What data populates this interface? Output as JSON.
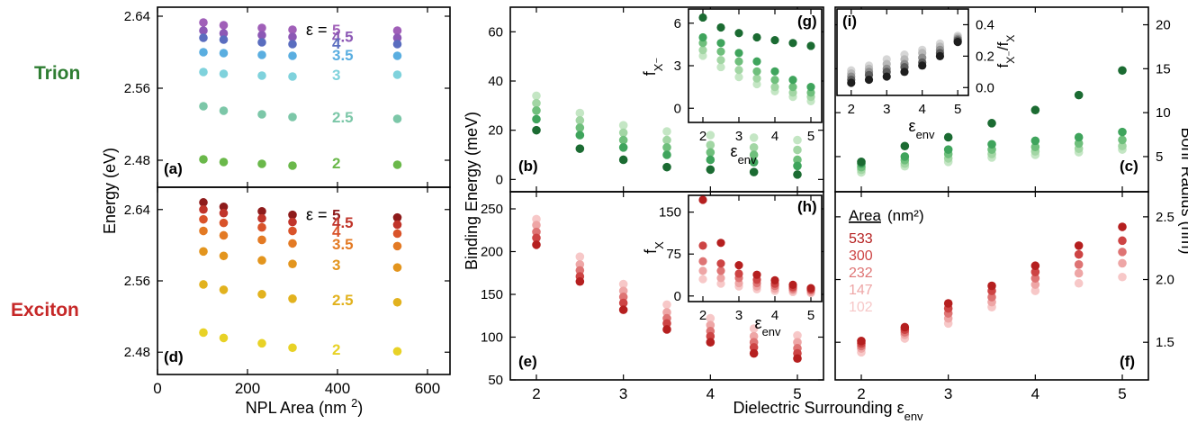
{
  "row_labels": {
    "trion": "Trion",
    "exciton": "Exciton"
  },
  "colors": {
    "trion_label": "#2e7d32",
    "exciton_label": "#c62828",
    "eps_palette": {
      "2": "#6ab84a",
      "2.5": "#7cc7a8",
      "3": "#7fd2dc",
      "3.5": "#5aaee0",
      "4": "#5a6dbf",
      "4.5": "#8c58b5",
      "5": "#a05fb8"
    },
    "exciton_eps_palette": {
      "2": "#e8d226",
      "2.5": "#e2b21e",
      "3": "#e3951e",
      "3.5": "#e37a24",
      "4": "#d9532a",
      "4.5": "#c0342a",
      "5": "#8e1b1b"
    },
    "area_green": {
      "102": "#c4e6c4",
      "147": "#a2d6a4",
      "232": "#6fbf7c",
      "300": "#3fa45c",
      "533": "#1b6b32"
    },
    "area_red": {
      "102": "#f7c8c8",
      "147": "#eea6a6",
      "232": "#de7474",
      "300": "#cd4444",
      "533": "#b51f1f"
    },
    "area_gray": {
      "102": "#d6d6d6",
      "147": "#b8b8b8",
      "232": "#8e8e8e",
      "300": "#5c5c5c",
      "533": "#1e1e1e"
    }
  },
  "chart_data": [
    {
      "id": "a",
      "panel_label": "(a)",
      "type": "scatter",
      "ylabel": "Energy (eV)",
      "xlim": [
        0,
        650
      ],
      "ylim": [
        2.45,
        2.65
      ],
      "yticks": [
        "2.48",
        "2.56",
        "2.64"
      ],
      "x": [
        102,
        147,
        232,
        300,
        533
      ],
      "eps_prefix": "ε =",
      "series": [
        {
          "name": "5",
          "values": [
            2.633,
            2.63,
            2.627,
            2.625,
            2.624
          ]
        },
        {
          "name": "4.5",
          "values": [
            2.624,
            2.621,
            2.619,
            2.617,
            2.616
          ]
        },
        {
          "name": "4",
          "values": [
            2.616,
            2.614,
            2.611,
            2.609,
            2.609
          ]
        },
        {
          "name": "3.5",
          "values": [
            2.6,
            2.599,
            2.597,
            2.596,
            2.596
          ]
        },
        {
          "name": "3",
          "values": [
            2.578,
            2.576,
            2.574,
            2.573,
            2.575
          ]
        },
        {
          "name": "2.5",
          "values": [
            2.54,
            2.535,
            2.531,
            2.528,
            2.526
          ]
        },
        {
          "name": "2",
          "values": [
            2.481,
            2.478,
            2.476,
            2.474,
            2.475
          ]
        }
      ]
    },
    {
      "id": "d",
      "panel_label": "(d)",
      "type": "scatter",
      "xlabel": "NPL Area (nm 2)",
      "xlim": [
        0,
        650
      ],
      "ylim": [
        2.455,
        2.665
      ],
      "xticks": [
        "0",
        "200",
        "400",
        "600"
      ],
      "yticks": [
        "2.48",
        "2.56",
        "2.64"
      ],
      "x": [
        102,
        147,
        232,
        300,
        533
      ],
      "eps_prefix": "ε =",
      "series": [
        {
          "name": "5",
          "values": [
            2.648,
            2.643,
            2.638,
            2.634,
            2.631
          ]
        },
        {
          "name": "4.5",
          "values": [
            2.64,
            2.636,
            2.63,
            2.626,
            2.623
          ]
        },
        {
          "name": "4",
          "values": [
            2.629,
            2.625,
            2.62,
            2.616,
            2.613
          ]
        },
        {
          "name": "3.5",
          "values": [
            2.616,
            2.611,
            2.606,
            2.602,
            2.599
          ]
        },
        {
          "name": "3",
          "values": [
            2.593,
            2.588,
            2.583,
            2.579,
            2.575
          ]
        },
        {
          "name": "2.5",
          "values": [
            2.556,
            2.55,
            2.545,
            2.54,
            2.536
          ]
        },
        {
          "name": "2",
          "values": [
            2.502,
            2.496,
            2.49,
            2.485,
            2.481
          ]
        }
      ]
    },
    {
      "id": "b",
      "panel_label": "(b)",
      "type": "scatter",
      "xlim": [
        1.7,
        5.3
      ],
      "ylim": [
        -5,
        70
      ],
      "yticks": [
        "0",
        "20",
        "40",
        "60"
      ],
      "x": [
        2,
        2.5,
        3,
        3.5,
        4,
        4.5,
        5
      ],
      "series": [
        {
          "name": "102",
          "values": [
            34,
            27,
            22,
            19.5,
            18,
            17,
            16
          ]
        },
        {
          "name": "147",
          "values": [
            31,
            24,
            19,
            16,
            14,
            13,
            12
          ]
        },
        {
          "name": "232",
          "values": [
            28,
            21,
            16,
            13,
            11,
            10,
            8
          ]
        },
        {
          "name": "300",
          "values": [
            24.5,
            18,
            13,
            10,
            8,
            7,
            5.5
          ]
        },
        {
          "name": "533",
          "values": [
            20,
            12.5,
            8,
            5,
            4,
            3,
            2
          ]
        }
      ]
    },
    {
      "id": "e",
      "panel_label": "(e)",
      "type": "scatter",
      "xlabel": "Dielectric Surrounding",
      "xlabel_symbol": "ε",
      "xlabel_sub": "env",
      "xlim": [
        1.7,
        5.3
      ],
      "ylim": [
        50,
        270
      ],
      "xticks": [
        "2",
        "3",
        "4",
        "5"
      ],
      "yticks": [
        "50",
        "100",
        "150",
        "200",
        "250"
      ],
      "x": [
        2,
        2.5,
        3,
        3.5,
        4,
        4.5,
        5
      ],
      "series": [
        {
          "name": "102",
          "values": [
            238,
            194,
            162,
            138,
            122,
            110,
            102
          ]
        },
        {
          "name": "147",
          "values": [
            231,
            185,
            154,
            129,
            114,
            101,
            94
          ]
        },
        {
          "name": "232",
          "values": [
            223,
            178,
            147,
            122,
            107,
            94,
            87
          ]
        },
        {
          "name": "300",
          "values": [
            216,
            171,
            140,
            116,
            101,
            88,
            81
          ]
        },
        {
          "name": "533",
          "values": [
            208,
            165,
            132,
            109,
            94,
            81,
            75
          ]
        }
      ]
    },
    {
      "id": "shared_y_bindingenergy",
      "type": "scatter",
      "ylabel": "Binding Energy (meV)"
    },
    {
      "id": "g",
      "panel_label": "(g)",
      "type": "scatter",
      "ylabel": "f",
      "ylabel_sub": "X⁻",
      "xlim": [
        1.6,
        5.3
      ],
      "ylim": [
        -1,
        7
      ],
      "xticks": [
        "2",
        "3",
        "4",
        "5"
      ],
      "yticks": [
        "0",
        "3",
        "6"
      ],
      "xlabel_symbol": "ε",
      "xlabel_sub": "env",
      "x": [
        2,
        2.5,
        3,
        3.5,
        4,
        4.5,
        5
      ],
      "series": [
        {
          "name": "102",
          "values": [
            3.7,
            2.9,
            2.2,
            1.7,
            1.2,
            0.8,
            0.5
          ]
        },
        {
          "name": "147",
          "values": [
            4.1,
            3.4,
            2.7,
            2.1,
            1.5,
            1.1,
            0.8
          ]
        },
        {
          "name": "232",
          "values": [
            4.6,
            4.0,
            3.3,
            2.6,
            2.0,
            1.5,
            1.1
          ]
        },
        {
          "name": "300",
          "values": [
            5.0,
            4.6,
            3.9,
            3.3,
            2.6,
            2.0,
            1.5
          ]
        },
        {
          "name": "533",
          "values": [
            6.4,
            5.7,
            5.3,
            5.0,
            4.8,
            4.6,
            4.4
          ]
        }
      ]
    },
    {
      "id": "h",
      "panel_label": "(h)",
      "type": "scatter",
      "ylabel": "f",
      "ylabel_sub": "X",
      "xlim": [
        1.6,
        5.3
      ],
      "ylim": [
        -10,
        180
      ],
      "xticks": [
        "2",
        "3",
        "4",
        "5"
      ],
      "yticks": [
        "0",
        "75",
        "150"
      ],
      "xlabel_symbol": "ε",
      "xlabel_sub": "env",
      "x": [
        2,
        2.5,
        3,
        3.5,
        4,
        4.5,
        5
      ],
      "series": [
        {
          "name": "102",
          "values": [
            30,
            22,
            17,
            12,
            9,
            7,
            5
          ]
        },
        {
          "name": "147",
          "values": [
            45,
            32,
            23,
            17,
            13,
            10,
            7
          ]
        },
        {
          "name": "232",
          "values": [
            62,
            45,
            32,
            23,
            18,
            13,
            10
          ]
        },
        {
          "name": "300",
          "values": [
            90,
            58,
            40,
            29,
            22,
            16,
            12
          ]
        },
        {
          "name": "533",
          "values": [
            172,
            95,
            55,
            38,
            28,
            20,
            14
          ]
        }
      ]
    },
    {
      "id": "c",
      "panel_label": "(c)",
      "type": "scatter",
      "ylabel": "Bohr Radius (nm)",
      "xlim": [
        1.7,
        5.3
      ],
      "ylim": [
        1,
        22
      ],
      "yticks": [
        "5",
        "10",
        "15",
        "20"
      ],
      "x": [
        2,
        2.5,
        3,
        3.5,
        4,
        4.5,
        5
      ],
      "series": [
        {
          "name": "102",
          "values": [
            3.2,
            3.9,
            4.4,
            4.9,
            5.2,
            5.5,
            5.8
          ]
        },
        {
          "name": "147",
          "values": [
            3.5,
            4.2,
            4.8,
            5.3,
            5.6,
            5.9,
            6.2
          ]
        },
        {
          "name": "232",
          "values": [
            3.8,
            4.6,
            5.3,
            5.8,
            6.1,
            6.5,
            6.9
          ]
        },
        {
          "name": "300",
          "values": [
            4.2,
            5.0,
            5.8,
            6.4,
            6.8,
            7.2,
            7.8
          ]
        },
        {
          "name": "533",
          "values": [
            4.4,
            6.2,
            7.2,
            8.8,
            10.3,
            12.0,
            14.8
          ]
        }
      ]
    },
    {
      "id": "f",
      "panel_label": "(f)",
      "type": "scatter",
      "xlim": [
        1.7,
        5.3
      ],
      "ylim": [
        1.2,
        2.7
      ],
      "xticks": [
        "2",
        "3",
        "4",
        "5"
      ],
      "yticks": [
        "1.5",
        "2.0",
        "2.5"
      ],
      "x": [
        2,
        2.5,
        3,
        3.5,
        4,
        4.5,
        5
      ],
      "legend_title": "Area",
      "legend_unit": "(nm²)",
      "legend_order": [
        "533",
        "300",
        "232",
        "147",
        "102"
      ],
      "series": [
        {
          "name": "102",
          "values": [
            1.42,
            1.53,
            1.65,
            1.78,
            1.91,
            1.97,
            2.02
          ]
        },
        {
          "name": "147",
          "values": [
            1.45,
            1.56,
            1.69,
            1.82,
            1.96,
            2.05,
            2.13
          ]
        },
        {
          "name": "232",
          "values": [
            1.47,
            1.58,
            1.73,
            1.86,
            2.01,
            2.12,
            2.22
          ]
        },
        {
          "name": "300",
          "values": [
            1.49,
            1.6,
            1.77,
            1.91,
            2.06,
            2.2,
            2.31
          ]
        },
        {
          "name": "533",
          "values": [
            1.51,
            1.62,
            1.81,
            1.95,
            2.11,
            2.27,
            2.42
          ]
        }
      ]
    },
    {
      "id": "i",
      "panel_label": "(i)",
      "type": "scatter",
      "ylabel": "f",
      "ylabel_sub": "X⁻",
      "ylabel_tail": "/f",
      "ylabel_tail_sub": "X",
      "xlim": [
        1.6,
        5.3
      ],
      "ylim": [
        -0.05,
        0.5
      ],
      "xticks": [
        "2",
        "3",
        "4",
        "5"
      ],
      "yticks": [
        "0.0",
        "0.2",
        "0.4"
      ],
      "xlabel_symbol": "ε",
      "xlabel_sub": "env",
      "x": [
        2,
        2.5,
        3,
        3.5,
        4,
        4.5,
        5
      ],
      "series": [
        {
          "name": "102",
          "values": [
            0.11,
            0.14,
            0.18,
            0.21,
            0.24,
            0.28,
            0.33
          ]
        },
        {
          "name": "147",
          "values": [
            0.09,
            0.12,
            0.15,
            0.18,
            0.22,
            0.26,
            0.32
          ]
        },
        {
          "name": "232",
          "values": [
            0.07,
            0.1,
            0.12,
            0.15,
            0.19,
            0.24,
            0.31
          ]
        },
        {
          "name": "300",
          "values": [
            0.05,
            0.08,
            0.1,
            0.13,
            0.16,
            0.22,
            0.3
          ]
        },
        {
          "name": "533",
          "values": [
            0.03,
            0.05,
            0.07,
            0.1,
            0.14,
            0.2,
            0.29
          ]
        }
      ]
    }
  ]
}
